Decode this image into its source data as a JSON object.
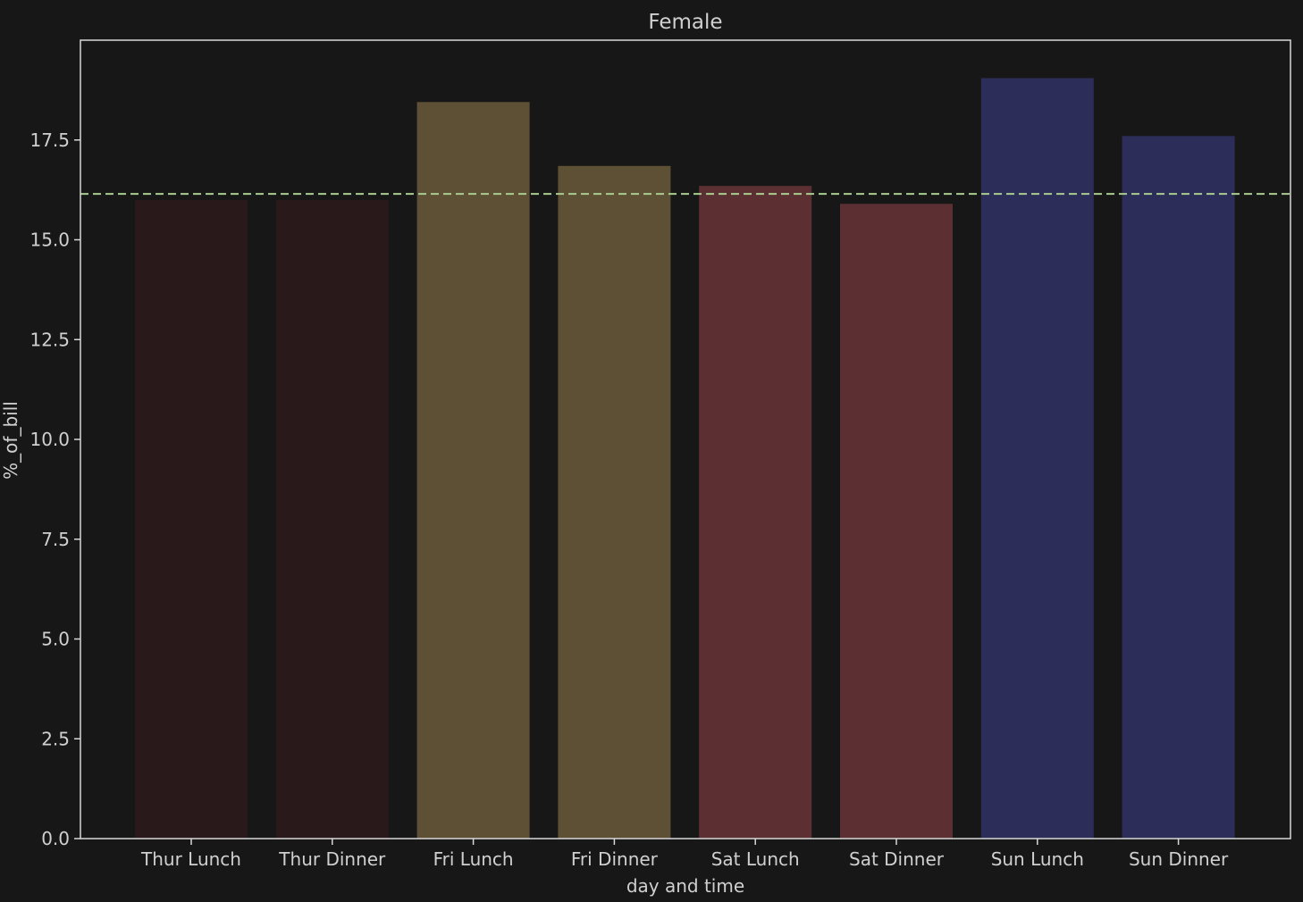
{
  "colors": {
    "background": "#171717",
    "axes_frame": "#d8d8d8",
    "text": "#d0d0d0",
    "mean_line": "#a9cc8f"
  },
  "chart_data": {
    "type": "bar",
    "title": "Female",
    "xlabel": "day and time",
    "ylabel": "%_of_bill",
    "categories": [
      "Thur Lunch",
      "Thur Dinner",
      "Fri Lunch",
      "Fri Dinner",
      "Sat Lunch",
      "Sat Dinner",
      "Sun Lunch",
      "Sun Dinner"
    ],
    "values": [
      16.0,
      16.0,
      18.45,
      16.85,
      16.35,
      15.9,
      19.05,
      17.6
    ],
    "bar_colors": [
      "#2a191b",
      "#2a191b",
      "#5e5035",
      "#5e5035",
      "#5c3033",
      "#5c3033",
      "#2d2d5a",
      "#2d2d5a"
    ],
    "reference_line": {
      "y": 16.15,
      "style": "dashed"
    },
    "ylim": [
      0,
      20.0
    ],
    "yticks": [
      0.0,
      2.5,
      5.0,
      7.5,
      10.0,
      12.5,
      15.0,
      17.5
    ],
    "ytick_labels": [
      "0.0",
      "2.5",
      "5.0",
      "7.5",
      "10.0",
      "12.5",
      "15.0",
      "17.5"
    ],
    "grid": false,
    "legend": "none"
  }
}
